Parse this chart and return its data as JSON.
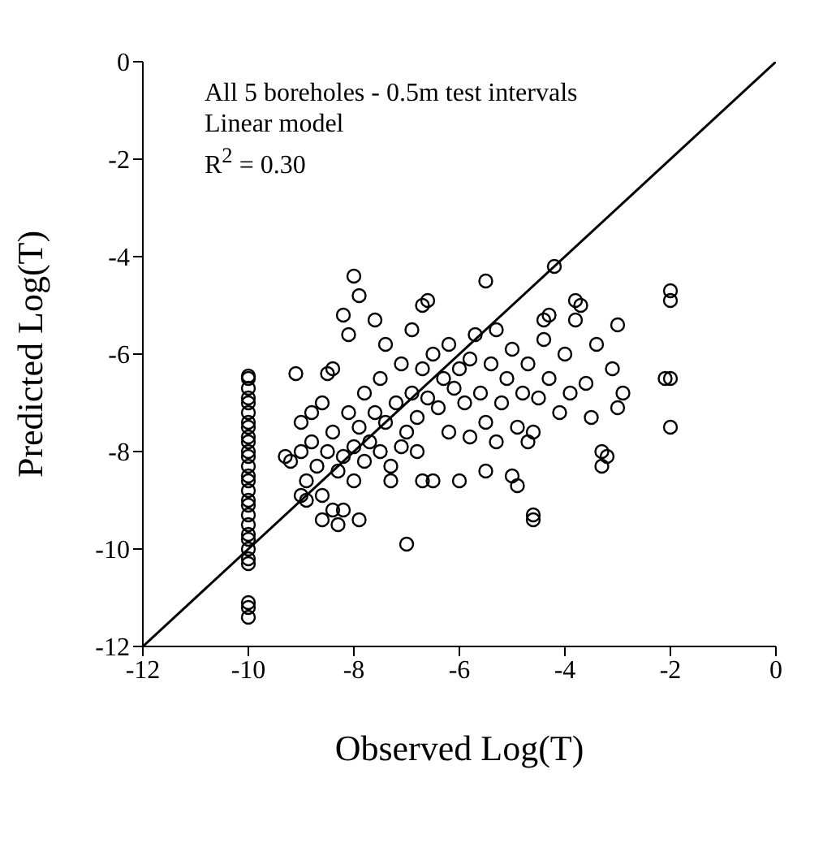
{
  "chart_data": {
    "type": "scatter",
    "xlabel": "Observed Log(T)",
    "ylabel": "Predicted Log(T)",
    "annotations": [
      "All 5 boreholes - 0.5m test intervals",
      "Linear model",
      "R$^{2}$ = 0.30"
    ],
    "xlim": [
      -12,
      0
    ],
    "xticks": [
      -12,
      -10,
      -8,
      -6,
      -4,
      -2,
      0
    ],
    "ylim": [
      -12,
      0
    ],
    "yticks": [
      -12,
      -10,
      -8,
      -6,
      -4,
      -2,
      0
    ],
    "grid": false,
    "legend": false,
    "series": [
      {
        "color": "#000000",
        "marker": "circle",
        "x": [
          -10,
          -10,
          -10,
          -10,
          -10,
          -10,
          -10,
          -10,
          -10,
          -10,
          -10,
          -10,
          -10,
          -10,
          -10,
          -10,
          -10,
          -10,
          -10,
          -10,
          -10,
          -10,
          -10,
          -10,
          -10,
          -10,
          -10,
          -10,
          -9.2,
          -9.0,
          -9.0,
          -8.9,
          -8.8,
          -8.7,
          -8.6,
          -8.6,
          -8.5,
          -8.5,
          -8.4,
          -8.3,
          -8.2,
          -8.1,
          -8.0,
          -8.0,
          -7.9,
          -7.8,
          -7.8,
          -7.7,
          -7.6,
          -7.5,
          -7.5,
          -7.4,
          -7.3,
          -7.2,
          -7.1,
          -7.0,
          -6.9,
          -6.8,
          -6.7,
          -6.6,
          -6.5,
          -6.4,
          -6.3,
          -6.2,
          -6.1,
          -6.0,
          -5.9,
          -5.8,
          -5.7,
          -5.6,
          -5.5,
          -5.4,
          -5.3,
          -5.2,
          -5.1,
          -5.0,
          -4.9,
          -4.8,
          -4.7,
          -4.6,
          -4.5,
          -4.4,
          -4.3,
          -4.2,
          -4.1,
          -4.0,
          -3.9,
          -3.8,
          -3.7,
          -3.6,
          -3.5,
          -3.4,
          -3.3,
          -3.2,
          -3.1,
          -3.0,
          -3.0,
          -2.9,
          -2.1,
          -2.0,
          -2.0,
          -2.0,
          -2.0,
          -8.0,
          -7.9,
          -8.2,
          -8.1,
          -7.6,
          -7.4,
          -6.6,
          -6.7,
          -5.5,
          -6.9,
          -8.4,
          -9.1,
          -4.3,
          -4.4,
          -3.8,
          -8.6,
          -8.4,
          -8.3,
          -8.2,
          -7.9,
          -7.0,
          -8.9,
          -6.7,
          -6.5,
          -6.0,
          -5.5,
          -4.6,
          -4.6,
          -5.0,
          -4.9,
          -3.3,
          -6.8,
          -7.3,
          -9.0,
          -9.3,
          -8.8,
          -7.1,
          -6.2,
          -5.8,
          -5.3,
          -4.7
        ],
        "values": [
          -6.45,
          -6.5,
          -6.7,
          -6.9,
          -7.0,
          -7.2,
          -7.4,
          -7.5,
          -7.7,
          -7.8,
          -8.0,
          -8.1,
          -8.3,
          -8.5,
          -8.6,
          -8.8,
          -9.0,
          -9.1,
          -9.3,
          -9.5,
          -9.7,
          -9.8,
          -10.0,
          -10.2,
          -10.3,
          -11.1,
          -11.2,
          -11.4,
          -8.2,
          -8.0,
          -7.4,
          -8.6,
          -7.8,
          -8.3,
          -7.0,
          -8.9,
          -8.0,
          -6.4,
          -7.6,
          -8.4,
          -8.1,
          -7.2,
          -7.9,
          -8.6,
          -7.5,
          -8.2,
          -6.8,
          -7.8,
          -7.2,
          -8.0,
          -6.5,
          -7.4,
          -8.3,
          -7.0,
          -6.2,
          -7.6,
          -6.8,
          -7.3,
          -6.3,
          -6.9,
          -6.0,
          -7.1,
          -6.5,
          -5.8,
          -6.7,
          -6.3,
          -7.0,
          -6.1,
          -5.6,
          -6.8,
          -7.4,
          -6.2,
          -5.5,
          -7.0,
          -6.5,
          -5.9,
          -7.5,
          -6.8,
          -6.2,
          -7.6,
          -6.9,
          -5.7,
          -6.5,
          -4.2,
          -7.2,
          -6.0,
          -6.8,
          -5.3,
          -5.0,
          -6.6,
          -7.3,
          -5.8,
          -8.3,
          -8.1,
          -6.3,
          -5.4,
          -7.1,
          -6.8,
          -6.5,
          -4.7,
          -4.9,
          -6.5,
          -7.5,
          -4.4,
          -4.8,
          -5.2,
          -5.6,
          -5.3,
          -5.8,
          -4.9,
          -5.0,
          -4.5,
          -5.5,
          -6.3,
          -6.4,
          -5.2,
          -5.3,
          -4.9,
          -9.4,
          -9.2,
          -9.5,
          -9.2,
          -9.4,
          -9.9,
          -9.0,
          -8.6,
          -8.6,
          -8.6,
          -8.4,
          -9.3,
          -9.4,
          -8.5,
          -8.7,
          -8.0,
          -8.0,
          -8.6,
          -8.9,
          -8.1,
          -7.2,
          -7.9,
          -7.6,
          -7.7,
          -7.8,
          -7.8
        ]
      },
      {
        "type": "line",
        "color": "#000000",
        "marker": "none",
        "line_style": "solid",
        "x": [
          -12,
          0
        ],
        "values": [
          -12,
          0
        ]
      }
    ]
  }
}
